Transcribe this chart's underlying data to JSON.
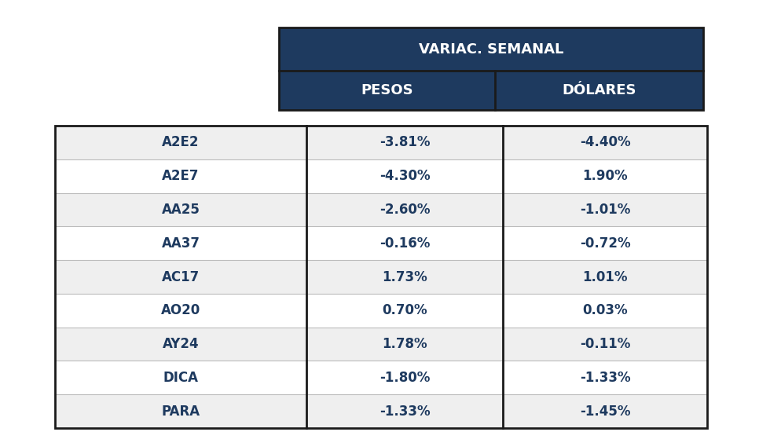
{
  "header_title": "VARIAC. SEMANAL",
  "col1_header": "PESOS",
  "col2_header": "DÓLARES",
  "header_bg": "#1e3a5f",
  "header_text_color": "#ffffff",
  "rows": [
    {
      "bond": "A2E2",
      "pesos": "-3.81%",
      "dolares": "-4.40%"
    },
    {
      "bond": "A2E7",
      "pesos": "-4.30%",
      "dolares": "1.90%"
    },
    {
      "bond": "AA25",
      "pesos": "-2.60%",
      "dolares": "-1.01%"
    },
    {
      "bond": "AA37",
      "pesos": "-0.16%",
      "dolares": "-0.72%"
    },
    {
      "bond": "AC17",
      "pesos": "1.73%",
      "dolares": "1.01%"
    },
    {
      "bond": "AO20",
      "pesos": "0.70%",
      "dolares": "0.03%"
    },
    {
      "bond": "AY24",
      "pesos": "1.78%",
      "dolares": "-0.11%"
    },
    {
      "bond": "DICA",
      "pesos": "-1.80%",
      "dolares": "-1.33%"
    },
    {
      "bond": "PARA",
      "pesos": "-1.33%",
      "dolares": "-1.45%"
    }
  ],
  "row_bg_odd": "#efefef",
  "row_bg_even": "#ffffff",
  "row_text_color": "#1e3a5f",
  "border_color": "#1a1a1a",
  "fig_bg": "#ffffff",
  "header_fontsize": 13,
  "data_fontsize": 12
}
